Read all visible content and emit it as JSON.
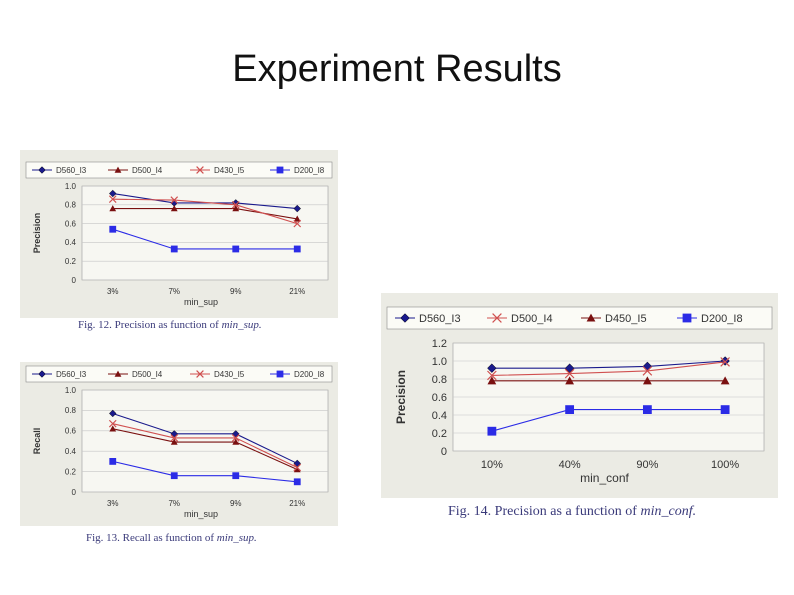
{
  "slide": {
    "title": "Experiment Results"
  },
  "colors": {
    "s1": "#1a1a8c",
    "s2": "#7a1010",
    "s3": "#d05050",
    "s4": "#2b2be6",
    "panel": "#ebebe4",
    "caption": "#3a3a7a"
  },
  "charts": {
    "fig12": {
      "caption_prefix": "Fig. 12. Precision as function of ",
      "caption_var": "min_sup."
    },
    "fig13": {
      "caption_prefix": "Fig. 13. Recall as function of ",
      "caption_var": "min_sup."
    },
    "fig14": {
      "caption_prefix": "Fig. 14. Precision as a function of ",
      "caption_var": "min_conf."
    }
  },
  "chart_data": [
    {
      "id": "fig12",
      "type": "line",
      "title": "",
      "xlabel": "min_sup",
      "ylabel": "Precision",
      "categories": [
        "3%",
        "7%",
        "9%",
        "21%"
      ],
      "ylim": [
        0,
        1.0
      ],
      "yticks": [
        "0",
        "0.2",
        "0.4",
        "0.6",
        "0.8",
        "1.0"
      ],
      "grid": true,
      "legend": "top",
      "series": [
        {
          "name": "D560_I3",
          "marker": "diamond",
          "values": [
            0.92,
            0.82,
            0.82,
            0.76
          ]
        },
        {
          "name": "D500_I4",
          "marker": "triangle",
          "values": [
            0.76,
            0.76,
            0.76,
            0.65
          ]
        },
        {
          "name": "D430_I5",
          "marker": "x",
          "values": [
            0.86,
            0.85,
            0.8,
            0.6
          ]
        },
        {
          "name": "D200_I8",
          "marker": "square",
          "values": [
            0.54,
            0.33,
            0.33,
            0.33
          ]
        }
      ]
    },
    {
      "id": "fig13",
      "type": "line",
      "title": "",
      "xlabel": "min_sup",
      "ylabel": "Recall",
      "categories": [
        "3%",
        "7%",
        "9%",
        "21%"
      ],
      "ylim": [
        0,
        1.0
      ],
      "yticks": [
        "0",
        "0.2",
        "0.4",
        "0.6",
        "0.8",
        "1.0"
      ],
      "grid": true,
      "legend": "top",
      "series": [
        {
          "name": "D560_I3",
          "marker": "diamond",
          "values": [
            0.77,
            0.57,
            0.57,
            0.28
          ]
        },
        {
          "name": "D500_I4",
          "marker": "triangle",
          "values": [
            0.62,
            0.49,
            0.49,
            0.22
          ]
        },
        {
          "name": "D430_I5",
          "marker": "x",
          "values": [
            0.67,
            0.53,
            0.53,
            0.24
          ]
        },
        {
          "name": "D200_I8",
          "marker": "square",
          "values": [
            0.3,
            0.16,
            0.16,
            0.1
          ]
        }
      ]
    },
    {
      "id": "fig14",
      "type": "line",
      "title": "",
      "xlabel": "min_conf",
      "ylabel": "Precision",
      "categories": [
        "10%",
        "40%",
        "90%",
        "100%"
      ],
      "ylim": [
        0,
        1.2
      ],
      "yticks": [
        "0",
        "0.2",
        "0.4",
        "0.6",
        "0.8",
        "1.0",
        "1.2"
      ],
      "grid": true,
      "legend": "top",
      "series": [
        {
          "name": "D560_I3",
          "marker": "diamond",
          "values": [
            0.92,
            0.92,
            0.94,
            1.0
          ]
        },
        {
          "name": "D500_I4",
          "marker": "x",
          "values": [
            0.84,
            0.86,
            0.89,
            0.99
          ]
        },
        {
          "name": "D450_I5",
          "marker": "triangle",
          "values": [
            0.78,
            0.78,
            0.78,
            0.78
          ]
        },
        {
          "name": "D200_I8",
          "marker": "square",
          "values": [
            0.22,
            0.46,
            0.46,
            0.46
          ]
        }
      ]
    }
  ]
}
